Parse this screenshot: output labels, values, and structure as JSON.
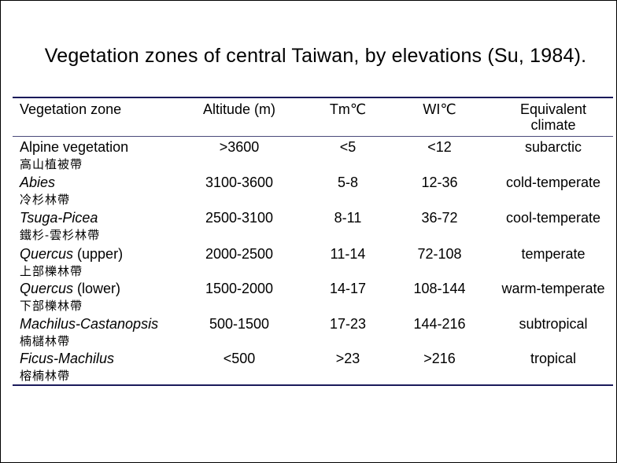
{
  "title": "Vegetation zones of central Taiwan, by elevations (Su, 1984).",
  "headers": {
    "zone": "Vegetation zone",
    "altitude": "Altitude (m)",
    "tm": "Tm℃",
    "wi": "WI℃",
    "climate_line1": "Equivalent",
    "climate_line2": "climate"
  },
  "rows": [
    {
      "name_italic": "",
      "name_plain": "Alpine vegetation",
      "name_zh": "高山植被帶",
      "altitude": ">3600",
      "tm": "<5",
      "wi": "<12",
      "climate": "subarctic"
    },
    {
      "name_italic": "Abies",
      "name_plain": "",
      "name_zh": "冷杉林帶",
      "altitude": "3100-3600",
      "tm": "5-8",
      "wi": "12-36",
      "climate": "cold-temperate"
    },
    {
      "name_italic": "Tsuga-Picea",
      "name_plain": "",
      "name_zh": "鐵杉-雲杉林帶",
      "altitude": "2500-3100",
      "tm": "8-11",
      "wi": "36-72",
      "climate": "cool-temperate"
    },
    {
      "name_italic": "Quercus",
      "name_plain": " (upper)",
      "name_zh": "上部櫟林帶",
      "altitude": "2000-2500",
      "tm": "11-14",
      "wi": "72-108",
      "climate": "temperate"
    },
    {
      "name_italic": "Quercus",
      "name_plain": " (lower)",
      "name_zh": "下部櫟林帶",
      "altitude": "1500-2000",
      "tm": "14-17",
      "wi": "108-144",
      "climate": "warm-temperate"
    },
    {
      "name_italic": "Machilus-Castanopsis",
      "name_plain": "",
      "name_zh": "楠櫧林帶",
      "altitude": "500-1500",
      "tm": "17-23",
      "wi": "144-216",
      "climate": "subtropical"
    },
    {
      "name_italic": "Ficus-Machilus",
      "name_plain": "",
      "name_zh": "榕楠林帶",
      "altitude": "<500",
      "tm": ">23",
      "wi": ">216",
      "climate": "tropical"
    }
  ]
}
